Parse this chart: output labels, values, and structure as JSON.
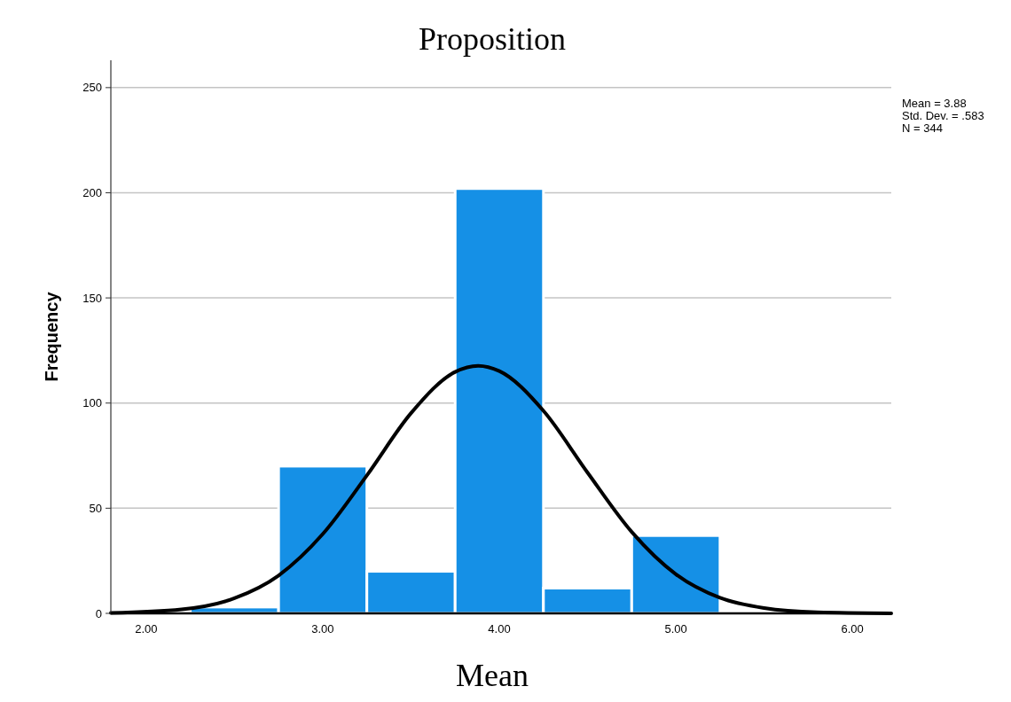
{
  "chart_data": {
    "type": "histogram",
    "title": "Proposition",
    "xlabel": "Mean",
    "ylabel": "Frequency",
    "bins": [
      2.25,
      2.75,
      3.25,
      3.75,
      4.25,
      4.75,
      5.25
    ],
    "values": [
      3,
      70,
      20,
      202,
      12,
      37
    ],
    "color": "#1590e6",
    "series": [
      {
        "type": "line",
        "color": "#000000",
        "x": [
          1.8,
          2.2,
          2.5,
          2.75,
          3.0,
          3.25,
          3.5,
          3.75,
          3.88,
          4.0,
          4.25,
          4.5,
          4.75,
          5.0,
          5.25,
          5.5,
          5.8,
          6.22
        ],
        "values": [
          0.2,
          1.9,
          7.2,
          18,
          37.7,
          65.6,
          95.2,
          114.8,
          117.7,
          115.2,
          96.3,
          66.9,
          38.7,
          18.6,
          7.4,
          2.5,
          0.5,
          0
        ]
      }
    ],
    "xlim": [
      1.8,
      6.22
    ],
    "xticks": [
      {
        "value": 2,
        "label": "2.00"
      },
      {
        "value": 3,
        "label": "3.00"
      },
      {
        "value": 4,
        "label": "4.00"
      },
      {
        "value": 5,
        "label": "5.00"
      },
      {
        "value": 6,
        "label": "6.00"
      }
    ],
    "ylim": [
      0,
      263
    ],
    "yticks": [
      0,
      50,
      100,
      150,
      200,
      250
    ],
    "grid": "y",
    "marker": "none",
    "annotations": [
      "Mean = 3.88",
      "Std. Dev. = .583",
      "N = 344"
    ]
  }
}
